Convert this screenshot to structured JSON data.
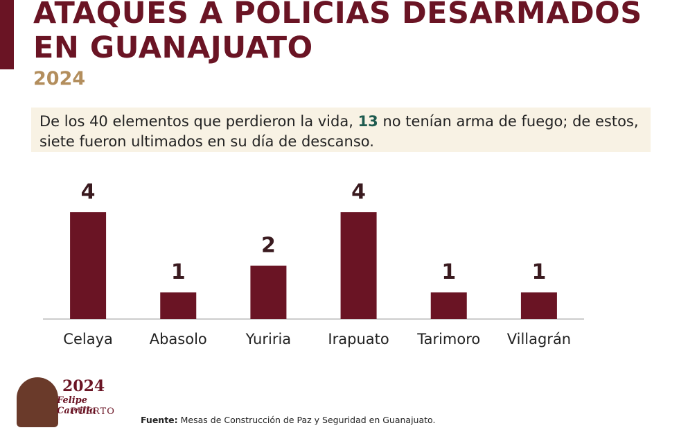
{
  "chart_data": {
    "type": "bar",
    "title_lines": [
      "ATAQUES A POLICÍAS DESARMADOS",
      "EN GUANAJUATO"
    ],
    "subtitle": "2024",
    "note": [
      "De los 40 elementos que perdieron la vida, ",
      "13",
      " no tenían arma de fuego; de estos, siete fueron ultimados en su día de descanso."
    ],
    "categories": [
      "Celaya",
      "Abasolo",
      "Yuriria",
      "Irapuato",
      "Tarimoro",
      "Villagrán"
    ],
    "values": [
      4,
      1,
      2,
      4,
      1,
      1
    ],
    "color": "#6a1424",
    "source_label": "Fuente:",
    "source": "Mesas de Construcción de Paz y Seguridad en Guanajuato.",
    "logo": {
      "year": "2024",
      "name": "Felipe Carrillo",
      "place": "PUERTO"
    }
  }
}
